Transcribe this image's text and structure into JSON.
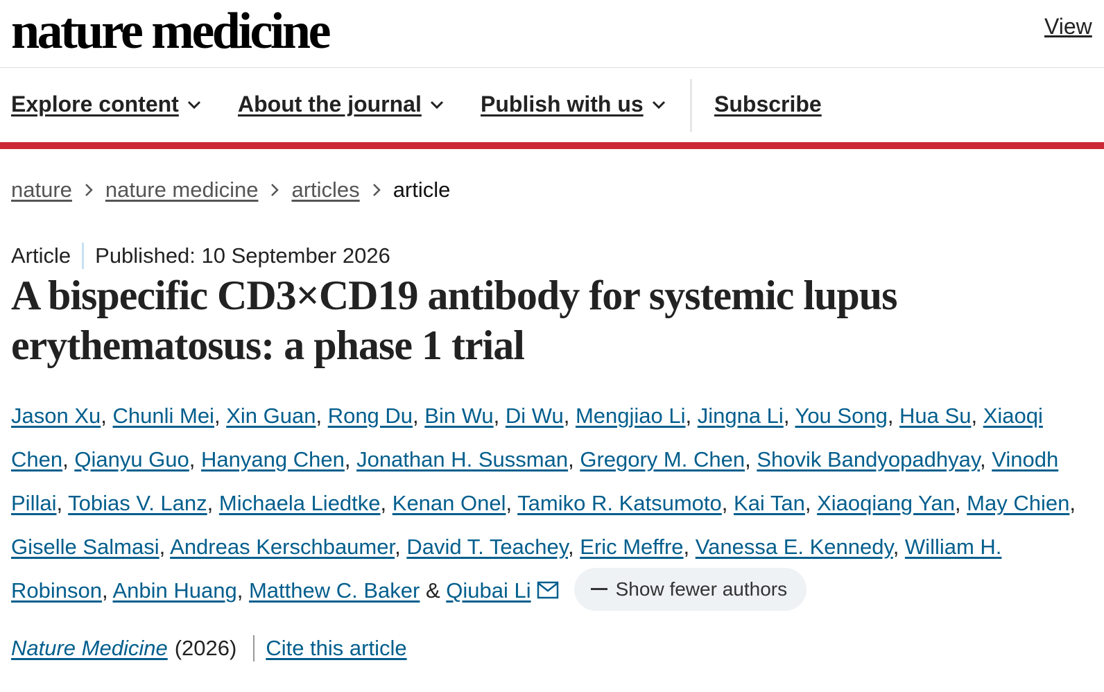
{
  "header": {
    "logo_text": "nature medicine",
    "view_link": "View"
  },
  "nav": {
    "items": [
      {
        "label": "Explore content"
      },
      {
        "label": "About the journal"
      },
      {
        "label": "Publish with us"
      },
      {
        "label": "Subscribe"
      }
    ],
    "accent_color": "#cc2936"
  },
  "breadcrumb": {
    "items": [
      "nature",
      "nature medicine",
      "articles"
    ],
    "current": "article"
  },
  "article": {
    "type": "Article",
    "published": "Published: 10 September 2026",
    "title": "A bispecific CD3×CD19 antibody for systemic lupus erythematosus: a phase 1 trial",
    "authors": [
      "Jason Xu",
      "Chunli Mei",
      "Xin Guan",
      "Rong Du",
      "Bin Wu",
      "Di Wu",
      "Mengjiao Li",
      "Jingna Li",
      "You Song",
      "Hua Su",
      "Xiaoqi Chen",
      "Qianyu Guo",
      "Hanyang Chen",
      "Jonathan H. Sussman",
      "Gregory M. Chen",
      "Shovik Bandyopadhyay",
      "Vinodh Pillai",
      "Tobias V. Lanz",
      "Michaela Liedtke",
      "Kenan Onel",
      "Tamiko R. Katsumoto",
      "Kai Tan",
      "Xiaoqiang Yan",
      "May Chien",
      "Giselle Salmasi",
      "Andreas Kerschbaumer",
      "David T. Teachey",
      "Eric Meffre",
      "Vanessa E. Kennedy",
      "William H. Robinson",
      "Anbin Huang",
      "Matthew C. Baker",
      "Qiubai Li"
    ],
    "author_separator": ", ",
    "author_last_separator": "&",
    "show_fewer_label": "Show fewer authors",
    "journal": "Nature Medicine",
    "year": "(2026)",
    "cite_label": "Cite this article",
    "link_color": "#025e8d"
  },
  "icons": {
    "nav_chevron": "chevron-down-icon",
    "breadcrumb_sep": "chevron-right-icon",
    "corresponding_author": "envelope-icon"
  }
}
